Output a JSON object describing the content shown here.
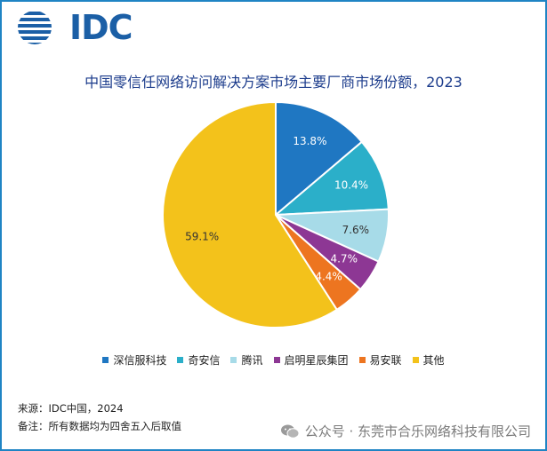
{
  "brand": {
    "logo_text": "IDC"
  },
  "chart_data": {
    "type": "pie",
    "title": "中国零信任网络访问解决方案市场主要厂商市场份额，2023",
    "categories": [
      "深信服科技",
      "奇安信",
      "腾讯",
      "启明星辰集团",
      "易安联",
      "其他"
    ],
    "values": [
      13.8,
      10.4,
      7.6,
      4.7,
      4.4,
      59.1
    ],
    "data_labels": [
      "13.8%",
      "10.4%",
      "7.6%",
      "4.7%",
      "4.4%",
      "59.1%"
    ],
    "colors": [
      "#1f77c2",
      "#2bafc9",
      "#a7dbe8",
      "#8d3794",
      "#ed7520",
      "#f3c21b"
    ],
    "legend_position": "bottom",
    "unit": "%"
  },
  "footer": {
    "source": "来源：IDC中国，2024",
    "note": "备注：所有数据均为四舍五入后取值"
  },
  "watermark": {
    "text": "公众号 · 东莞市合乐网络科技有限公司"
  }
}
